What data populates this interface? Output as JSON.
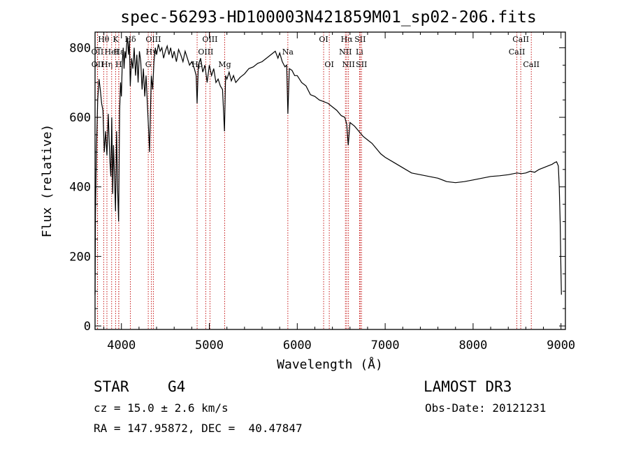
{
  "chart_data": {
    "type": "line",
    "title": "spec-56293-HD100003N421859M01_sp02-206.fits",
    "xlabel": "Wavelength (Å)",
    "ylabel": "Flux (relative)",
    "xlim": [
      3700,
      9050
    ],
    "ylim": [
      -10,
      845
    ],
    "xticks": [
      4000,
      5000,
      6000,
      7000,
      8000,
      9000
    ],
    "yticks": [
      0,
      200,
      400,
      600,
      800
    ],
    "grid": false,
    "series": [
      {
        "name": "spectrum",
        "x": [
          3700,
          3705,
          3715,
          3730,
          3745,
          3760,
          3775,
          3790,
          3805,
          3820,
          3835,
          3850,
          3860,
          3870,
          3880,
          3890,
          3900,
          3910,
          3920,
          3933,
          3945,
          3955,
          3968,
          3980,
          3990,
          4000,
          4010,
          4020,
          4030,
          4040,
          4050,
          4060,
          4070,
          4080,
          4090,
          4101,
          4115,
          4130,
          4145,
          4160,
          4175,
          4190,
          4205,
          4220,
          4235,
          4250,
          4265,
          4280,
          4295,
          4310,
          4320,
          4330,
          4340,
          4355,
          4370,
          4385,
          4400,
          4420,
          4440,
          4460,
          4480,
          4500,
          4520,
          4540,
          4560,
          4580,
          4600,
          4625,
          4650,
          4675,
          4700,
          4725,
          4750,
          4775,
          4800,
          4830,
          4850,
          4861,
          4875,
          4900,
          4925,
          4950,
          4975,
          5000,
          5025,
          5050,
          5075,
          5100,
          5125,
          5150,
          5172,
          5185,
          5200,
          5225,
          5250,
          5275,
          5300,
          5350,
          5400,
          5450,
          5500,
          5550,
          5600,
          5650,
          5700,
          5750,
          5780,
          5800,
          5830,
          5860,
          5880,
          5893,
          5910,
          5940,
          5970,
          6000,
          6050,
          6100,
          6150,
          6200,
          6250,
          6300,
          6350,
          6400,
          6450,
          6500,
          6540,
          6563,
          6580,
          6600,
          6650,
          6700,
          6750,
          6800,
          6850,
          6900,
          6950,
          7000,
          7100,
          7200,
          7300,
          7400,
          7500,
          7600,
          7700,
          7800,
          7900,
          8000,
          8100,
          8200,
          8300,
          8400,
          8500,
          8550,
          8600,
          8650,
          8700,
          8750,
          8800,
          8850,
          8900,
          8930,
          8950,
          8970,
          8980,
          8990,
          9000,
          9005
        ],
        "y": [
          90,
          320,
          500,
          650,
          710,
          680,
          640,
          620,
          500,
          560,
          490,
          610,
          540,
          470,
          430,
          600,
          380,
          520,
          440,
          330,
          560,
          410,
          300,
          620,
          700,
          660,
          760,
          800,
          740,
          790,
          770,
          810,
          830,
          780,
          820,
          690,
          770,
          740,
          800,
          720,
          780,
          700,
          790,
          760,
          680,
          740,
          660,
          720,
          640,
          560,
          500,
          620,
          720,
          680,
          760,
          800,
          780,
          810,
          790,
          800,
          770,
          790,
          805,
          780,
          800,
          770,
          790,
          760,
          795,
          780,
          760,
          790,
          770,
          750,
          760,
          740,
          720,
          640,
          750,
          770,
          730,
          750,
          700,
          750,
          720,
          740,
          700,
          710,
          690,
          680,
          560,
          720,
          710,
          730,
          705,
          720,
          700,
          715,
          725,
          740,
          745,
          755,
          760,
          770,
          780,
          790,
          770,
          785,
          760,
          745,
          750,
          610,
          740,
          735,
          720,
          720,
          700,
          690,
          665,
          660,
          650,
          645,
          640,
          630,
          620,
          605,
          600,
          580,
          520,
          585,
          575,
          560,
          545,
          535,
          525,
          510,
          495,
          485,
          470,
          455,
          440,
          435,
          430,
          425,
          415,
          412,
          415,
          420,
          425,
          430,
          432,
          435,
          440,
          438,
          440,
          445,
          442,
          450,
          455,
          460,
          465,
          470,
          472,
          460,
          400,
          300,
          150,
          90
        ]
      }
    ],
    "line_markers": [
      {
        "label": "Hθ",
        "wavelength": 3798,
        "row": 1
      },
      {
        "label": "OII",
        "wavelength": 3727,
        "row": 2
      },
      {
        "label": "OII",
        "wavelength": 3729,
        "row": 3
      },
      {
        "label": "Hη",
        "wavelength": 3835,
        "row": 3
      },
      {
        "label": "HeI",
        "wavelength": 3889,
        "row": 2
      },
      {
        "label": "K",
        "wavelength": 3934,
        "row": 1
      },
      {
        "label": "H",
        "wavelength": 3969,
        "row": 3
      },
      {
        "label": "Hε",
        "wavelength": 3970,
        "row": 2
      },
      {
        "label": "Hδ",
        "wavelength": 4102,
        "row": 1
      },
      {
        "label": "G",
        "wavelength": 4305,
        "row": 3
      },
      {
        "label": "OIII",
        "wavelength": 4363,
        "row": 1
      },
      {
        "label": "Hγ",
        "wavelength": 4341,
        "row": 2
      },
      {
        "label": "Hβ",
        "wavelength": 4861,
        "row": 3
      },
      {
        "label": "OIII",
        "wavelength": 4959,
        "row": 2
      },
      {
        "label": "OIII",
        "wavelength": 5007,
        "row": 1
      },
      {
        "label": "Mg",
        "wavelength": 5175,
        "row": 3
      },
      {
        "label": "Na",
        "wavelength": 5893,
        "row": 2
      },
      {
        "label": "OI",
        "wavelength": 6300,
        "row": 1
      },
      {
        "label": "OI",
        "wavelength": 6364,
        "row": 3
      },
      {
        "label": "Hα",
        "wavelength": 6563,
        "row": 1
      },
      {
        "label": "NII",
        "wavelength": 6548,
        "row": 2
      },
      {
        "label": "NII",
        "wavelength": 6583,
        "row": 3
      },
      {
        "label": "SII",
        "wavelength": 6716,
        "row": 1
      },
      {
        "label": "Li",
        "wavelength": 6708,
        "row": 2
      },
      {
        "label": "SII",
        "wavelength": 6731,
        "row": 3
      },
      {
        "label": "CaII",
        "wavelength": 8542,
        "row": 1
      },
      {
        "label": "CaII",
        "wavelength": 8498,
        "row": 2
      },
      {
        "label": "CaII",
        "wavelength": 8662,
        "row": 3
      }
    ]
  },
  "info": {
    "object_class": "STAR",
    "subclass": "G4",
    "survey": "LAMOST DR3",
    "cz": "cz = 15.0 ± 2.6 km/s",
    "obs_date": "Obs-Date: 20121231",
    "coords": "RA = 147.95872, DEC =  40.47847"
  },
  "colors": {
    "spectrum": "#000000",
    "marker_line": "#c00000"
  }
}
